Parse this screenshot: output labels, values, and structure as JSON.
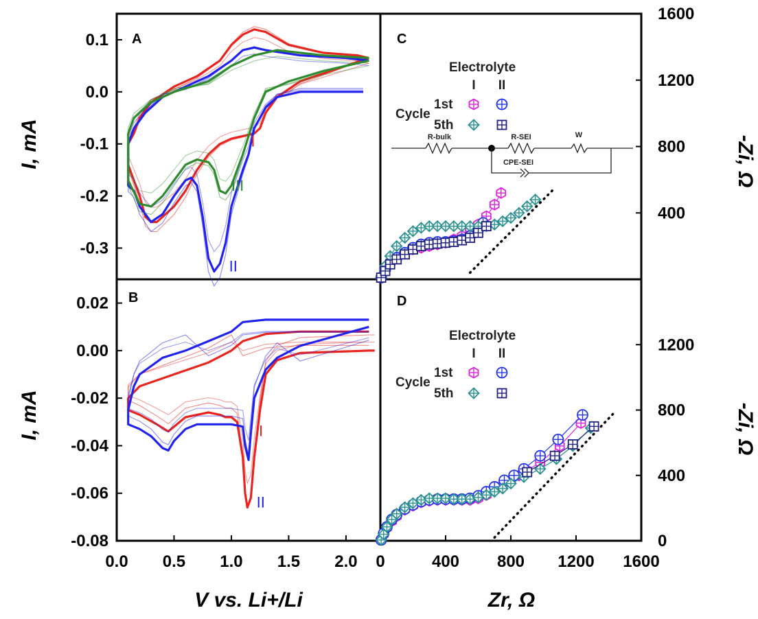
{
  "chart_data": [
    {
      "panel": "A",
      "type": "line",
      "xlim": [
        0.0,
        2.3
      ],
      "ylim": [
        -0.36,
        0.15
      ],
      "xticks": [
        "0.0",
        "0.5",
        "1.0",
        "1.5",
        "2.0"
      ],
      "yticks": [
        "0.1",
        "0.0",
        "-0.1",
        "-0.2",
        "-0.3"
      ],
      "ylabel": "I, mA",
      "curve_labels": [
        "I",
        "II",
        "III"
      ],
      "series": [
        {
          "name": "I",
          "color": "#e8241f",
          "x": [
            2.2,
            1.6,
            1.5,
            1.4,
            1.3,
            1.25,
            1.2,
            1.1,
            1.0,
            0.9,
            0.8,
            0.7,
            0.6,
            0.5,
            0.4,
            0.35,
            0.3,
            0.25,
            0.2,
            0.15,
            0.1,
            0.1,
            0.15,
            0.2,
            0.3,
            0.5,
            0.7,
            0.9,
            1.0,
            1.1,
            1.2,
            1.3,
            1.5,
            1.8,
            2.1,
            2.2
          ],
          "y": [
            0.065,
            0.02,
            0.005,
            -0.01,
            -0.04,
            -0.07,
            -0.08,
            -0.085,
            -0.09,
            -0.1,
            -0.12,
            -0.15,
            -0.19,
            -0.22,
            -0.24,
            -0.25,
            -0.25,
            -0.24,
            -0.2,
            -0.17,
            -0.14,
            -0.1,
            -0.08,
            -0.05,
            -0.02,
            0.01,
            0.03,
            0.06,
            0.09,
            0.11,
            0.12,
            0.115,
            0.09,
            0.075,
            0.07,
            0.065
          ]
        },
        {
          "name": "II",
          "color": "#2222ee",
          "x": [
            2.15,
            1.6,
            1.4,
            1.3,
            1.2,
            1.15,
            1.1,
            1.0,
            0.95,
            0.9,
            0.85,
            0.8,
            0.75,
            0.7,
            0.65,
            0.6,
            0.5,
            0.4,
            0.3,
            0.2,
            0.15,
            0.1,
            0.1,
            0.15,
            0.25,
            0.4,
            0.6,
            0.8,
            1.0,
            1.1,
            1.2,
            1.3,
            1.6,
            2.0,
            2.2
          ],
          "y": [
            0.0,
            0.0,
            -0.01,
            -0.03,
            -0.07,
            -0.12,
            -0.15,
            -0.22,
            -0.29,
            -0.33,
            -0.345,
            -0.32,
            -0.24,
            -0.18,
            -0.165,
            -0.17,
            -0.2,
            -0.235,
            -0.25,
            -0.22,
            -0.19,
            -0.18,
            -0.1,
            -0.07,
            -0.04,
            -0.01,
            0.01,
            0.03,
            0.06,
            0.08,
            0.085,
            0.08,
            0.07,
            0.065,
            0.06
          ]
        },
        {
          "name": "III",
          "color": "#2e8b2e",
          "x": [
            2.2,
            1.8,
            1.5,
            1.3,
            1.2,
            1.1,
            1.0,
            0.95,
            0.9,
            0.85,
            0.8,
            0.7,
            0.6,
            0.5,
            0.4,
            0.3,
            0.2,
            0.1,
            0.1,
            0.15,
            0.3,
            0.5,
            0.8,
            1.0,
            1.2,
            1.4,
            1.8,
            2.2
          ],
          "y": [
            0.06,
            0.04,
            0.02,
            0.0,
            -0.05,
            -0.12,
            -0.18,
            -0.195,
            -0.19,
            -0.15,
            -0.135,
            -0.13,
            -0.14,
            -0.17,
            -0.2,
            -0.22,
            -0.215,
            -0.17,
            -0.08,
            -0.05,
            -0.02,
            0.0,
            0.02,
            0.05,
            0.07,
            0.08,
            0.07,
            0.065
          ]
        }
      ]
    },
    {
      "panel": "B",
      "type": "line",
      "xlim": [
        0.0,
        2.3
      ],
      "ylim": [
        -0.08,
        0.03
      ],
      "xticks": [
        "0.0",
        "0.5",
        "1.0",
        "1.5",
        "2.0"
      ],
      "yticks": [
        "0.02",
        "0.00",
        "-0.02",
        "-0.04",
        "-0.06",
        "-0.08"
      ],
      "ylabel": "I, mA",
      "xlabel": "V vs. Li+/Li",
      "curve_labels": [
        "I",
        "II"
      ],
      "series": [
        {
          "name": "I",
          "color": "#e8241f",
          "x": [
            2.25,
            2.2,
            1.6,
            1.4,
            1.3,
            1.25,
            1.2,
            1.17,
            1.14,
            1.12,
            1.1,
            1.05,
            1.0,
            0.95,
            0.9,
            0.8,
            0.6,
            0.45,
            0.35,
            0.2,
            0.1,
            0.1,
            0.2,
            0.5,
            0.8,
            1.0,
            1.1,
            1.3,
            1.6,
            2.0,
            2.2
          ],
          "y": [
            0.0,
            0.0,
            -0.001,
            -0.004,
            -0.01,
            -0.025,
            -0.045,
            -0.062,
            -0.066,
            -0.06,
            -0.045,
            -0.03,
            -0.028,
            -0.028,
            -0.027,
            -0.026,
            -0.028,
            -0.034,
            -0.031,
            -0.027,
            -0.025,
            -0.02,
            -0.015,
            -0.01,
            -0.005,
            0.0,
            0.004,
            0.007,
            0.008,
            0.008,
            0.008
          ]
        },
        {
          "name": "II",
          "color": "#2222ee",
          "x": [
            2.2,
            1.6,
            1.4,
            1.3,
            1.2,
            1.17,
            1.15,
            1.12,
            1.1,
            1.0,
            0.9,
            0.7,
            0.6,
            0.5,
            0.45,
            0.4,
            0.3,
            0.2,
            0.1,
            0.1,
            0.15,
            0.2,
            0.4,
            0.6,
            0.8,
            1.0,
            1.1,
            1.3,
            1.6,
            2.0,
            2.2
          ],
          "y": [
            0.01,
            0.002,
            -0.003,
            -0.008,
            -0.02,
            -0.035,
            -0.046,
            -0.04,
            -0.032,
            -0.031,
            -0.031,
            -0.031,
            -0.033,
            -0.038,
            -0.042,
            -0.041,
            -0.036,
            -0.033,
            -0.031,
            -0.025,
            -0.015,
            -0.01,
            -0.003,
            0.0,
            0.004,
            0.008,
            0.012,
            0.013,
            0.013,
            0.013,
            0.013
          ]
        }
      ]
    },
    {
      "panel": "C",
      "type": "scatter",
      "xlim": [
        0,
        1600
      ],
      "ylim": [
        0,
        1600
      ],
      "yticks": [
        "1600",
        "1200",
        "800",
        "400"
      ],
      "ylabel": "-Zi, Ω",
      "legend_title": "Electrolyte",
      "legend_columns": [
        "I",
        "II"
      ],
      "legend_row_header": "Cycle",
      "legend_rows": [
        "1st",
        "5th"
      ],
      "circuit_labels": [
        "R-bulk",
        "R-SEI",
        "W",
        "CPE-SEI"
      ],
      "series": [
        {
          "name": "I 1st",
          "color": "#e020e0",
          "x": [
            5,
            30,
            60,
            100,
            150,
            200,
            250,
            300,
            350,
            400,
            450,
            500,
            550,
            600,
            650,
            700,
            740
          ],
          "y": [
            10,
            60,
            100,
            130,
            160,
            180,
            190,
            200,
            210,
            220,
            240,
            260,
            290,
            330,
            380,
            450,
            520
          ]
        },
        {
          "name": "II 1st",
          "color": "#2233ee",
          "x": [
            5,
            30,
            60,
            100,
            150,
            200,
            250,
            300,
            350,
            400,
            450,
            500,
            550,
            600,
            630
          ],
          "y": [
            10,
            60,
            100,
            130,
            160,
            190,
            210,
            220,
            225,
            225,
            230,
            240,
            260,
            300,
            340
          ]
        },
        {
          "name": "I 5th",
          "color": "#2a9090",
          "x": [
            5,
            30,
            60,
            100,
            150,
            200,
            250,
            300,
            350,
            400,
            450,
            500,
            550,
            600,
            650,
            700,
            750,
            800,
            850,
            900,
            950
          ],
          "y": [
            15,
            80,
            140,
            200,
            250,
            290,
            310,
            320,
            320,
            320,
            320,
            320,
            320,
            320,
            320,
            330,
            350,
            370,
            400,
            440,
            480
          ]
        },
        {
          "name": "II 5th",
          "color": "#202080",
          "x": [
            5,
            30,
            60,
            100,
            150,
            200,
            250,
            300,
            350,
            400,
            450,
            500,
            550,
            600,
            650
          ],
          "y": [
            10,
            50,
            90,
            120,
            150,
            180,
            200,
            210,
            215,
            220,
            225,
            235,
            250,
            280,
            320
          ]
        }
      ],
      "fit_line": {
        "x": [
          550,
          1060
        ],
        "y": [
          40,
          540
        ]
      }
    },
    {
      "panel": "D",
      "type": "scatter",
      "xlim": [
        0,
        1600
      ],
      "ylim": [
        0,
        1600
      ],
      "xticks": [
        "0",
        "400",
        "800",
        "1200",
        "1600"
      ],
      "yticks": [
        "1200",
        "800",
        "400",
        "0"
      ],
      "xlabel": "Zr, Ω",
      "ylabel": "-Zi, Ω",
      "legend_title": "Electrolyte",
      "legend_columns": [
        "I",
        "II"
      ],
      "legend_row_header": "Cycle",
      "legend_rows": [
        "1st",
        "5th"
      ],
      "series": [
        {
          "name": "I 1st",
          "color": "#e020e0",
          "x": [
            5,
            20,
            40,
            70,
            100,
            150,
            200,
            250,
            300,
            350,
            400,
            450,
            500,
            550,
            600,
            650,
            700,
            750,
            800,
            850,
            900,
            980,
            1100,
            1230
          ],
          "y": [
            5,
            40,
            80,
            120,
            150,
            190,
            215,
            235,
            245,
            250,
            250,
            250,
            250,
            250,
            260,
            280,
            310,
            340,
            370,
            400,
            430,
            480,
            580,
            720
          ]
        },
        {
          "name": "II 1st",
          "color": "#2233ee",
          "x": [
            5,
            20,
            40,
            70,
            100,
            150,
            200,
            250,
            300,
            350,
            400,
            450,
            500,
            550,
            600,
            650,
            700,
            760,
            820,
            880,
            980,
            1090,
            1240
          ],
          "y": [
            5,
            45,
            85,
            130,
            160,
            195,
            220,
            240,
            250,
            255,
            255,
            255,
            255,
            260,
            275,
            300,
            330,
            370,
            400,
            440,
            520,
            620,
            770
          ]
        },
        {
          "name": "I 5th",
          "color": "#2a9090",
          "x": [
            5,
            20,
            40,
            70,
            100,
            150,
            200,
            250,
            300,
            350,
            400,
            450,
            500,
            550,
            600,
            650,
            700,
            750,
            800,
            880,
            980,
            1080,
            1180,
            1290
          ],
          "y": [
            5,
            40,
            85,
            130,
            165,
            205,
            230,
            250,
            260,
            260,
            260,
            255,
            255,
            255,
            265,
            280,
            300,
            320,
            350,
            390,
            440,
            500,
            580,
            690
          ]
        },
        {
          "name": "II 5th",
          "color": "#202080",
          "x": [
            900,
            1070,
            1180,
            1310
          ],
          "y": [
            420,
            520,
            590,
            700
          ]
        }
      ],
      "fit_line": {
        "x": [
          700,
          1440
        ],
        "y": [
          20,
          790
        ]
      }
    }
  ]
}
